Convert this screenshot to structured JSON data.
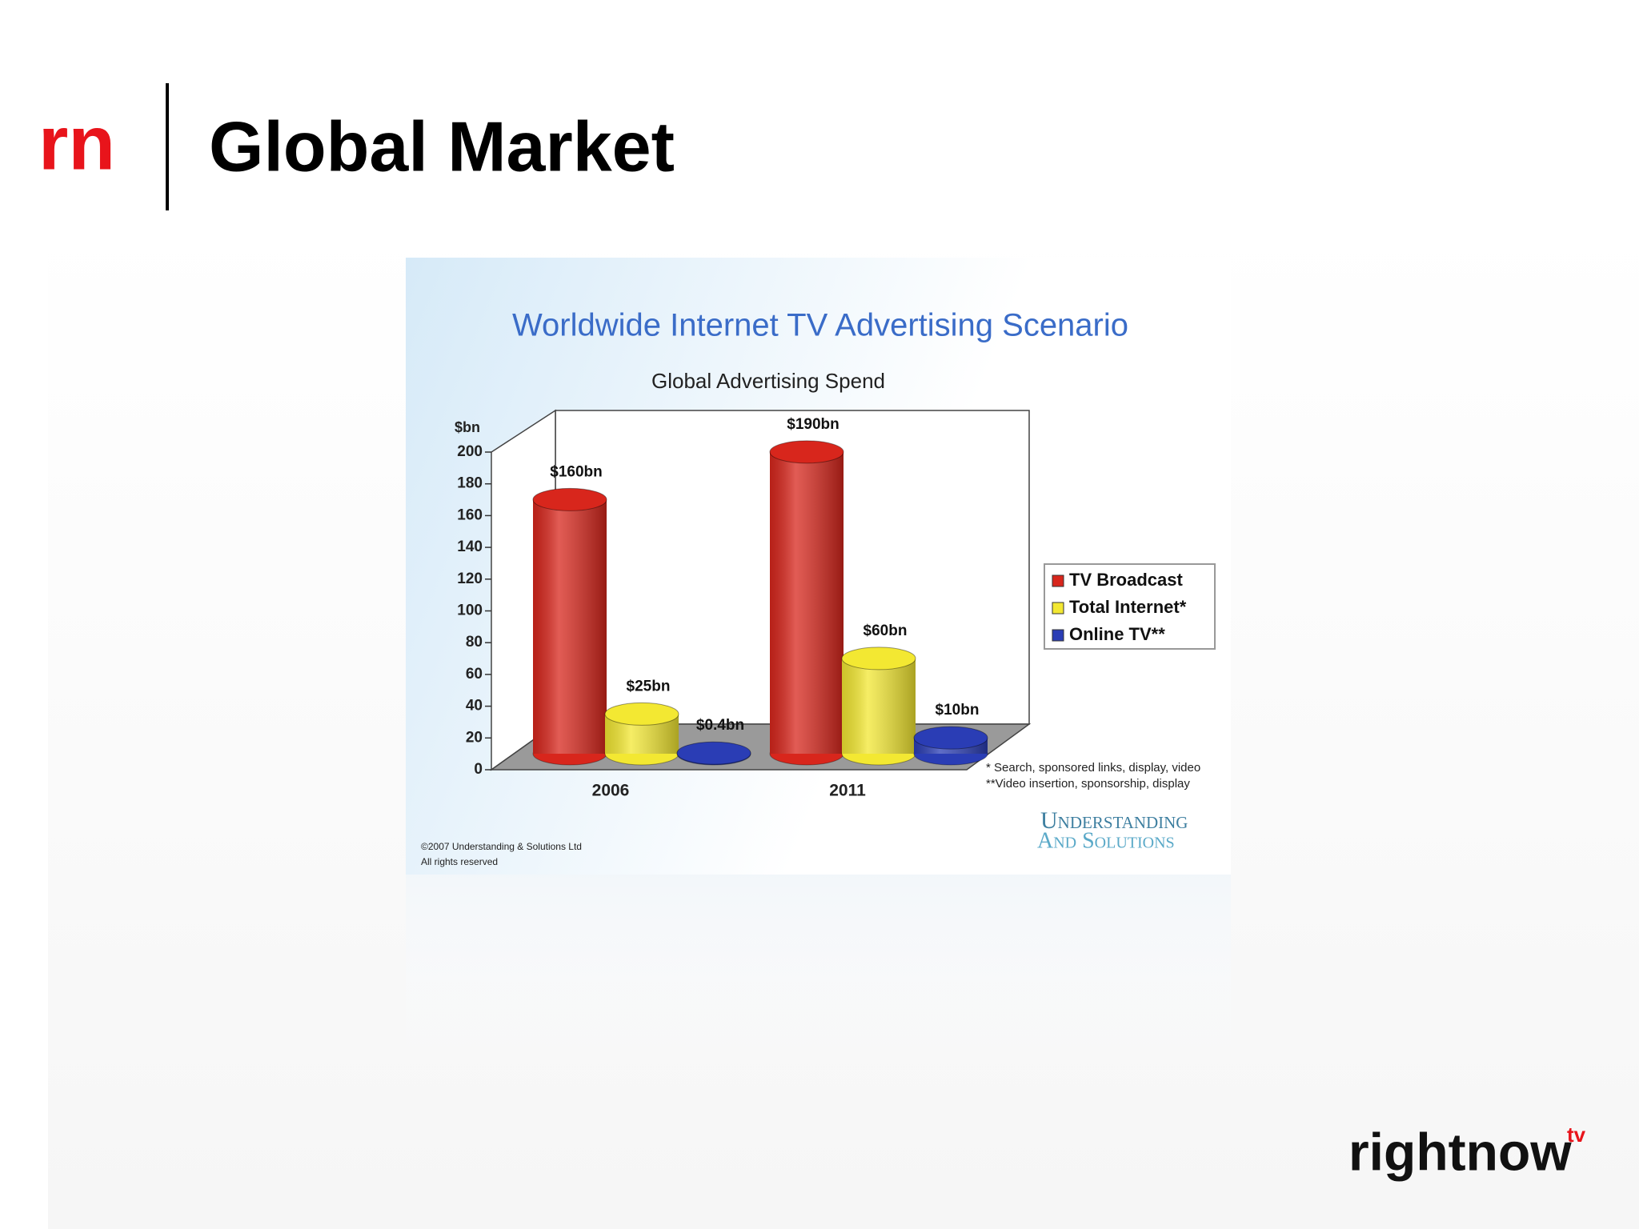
{
  "logo": "rn",
  "title": "Global Market",
  "brand": "rightnow",
  "brand_suffix": "tv",
  "chart_data": {
    "type": "bar",
    "title": "Worldwide Internet TV Advertising Scenario",
    "subtitle": "Global Advertising Spend",
    "y_label": "$bn",
    "categories": [
      "2006",
      "2011"
    ],
    "series": [
      {
        "name": "TV Broadcast",
        "color": "#d8261c",
        "values": [
          160,
          190
        ],
        "value_labels": [
          "$160bn",
          "$190bn"
        ]
      },
      {
        "name": "Total Internet*",
        "color": "#f3e832",
        "values": [
          25,
          60
        ],
        "value_labels": [
          "$25bn",
          "$60bn"
        ]
      },
      {
        "name": "Online TV**",
        "color": "#2a3db5",
        "values": [
          0.4,
          10
        ],
        "value_labels": [
          "$0.4bn",
          "$10bn"
        ]
      }
    ],
    "ylim": [
      0,
      200
    ],
    "yticks": [
      0,
      20,
      40,
      60,
      80,
      100,
      120,
      140,
      160,
      180,
      200
    ],
    "legend": "right",
    "footnotes": [
      "* Search, sponsored links, display, video",
      "**Video insertion, sponsorship, display"
    ],
    "copyright": [
      "©2007 Understanding & Solutions Ltd",
      "All rights reserved"
    ],
    "source": [
      "Understanding",
      "And Solutions"
    ]
  }
}
